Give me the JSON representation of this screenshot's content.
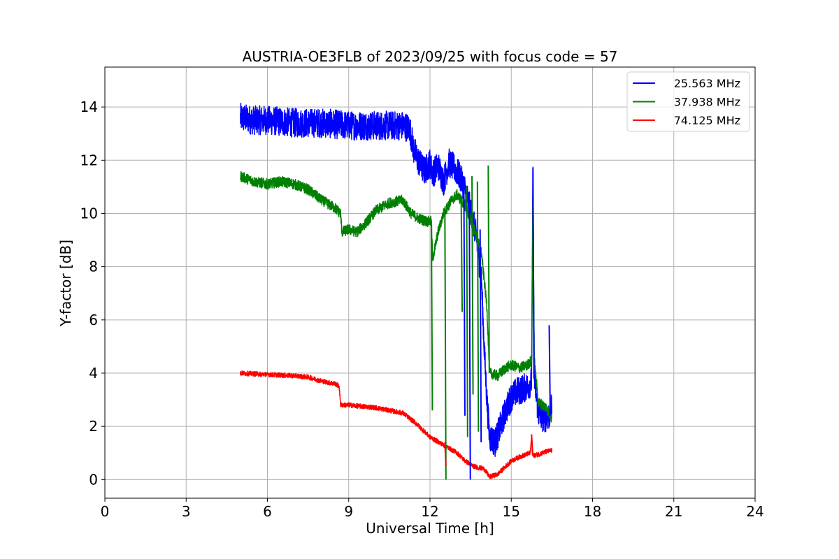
{
  "chart_data": {
    "type": "line",
    "title": "AUSTRIA-OE3FLB of 2023/09/25 with focus code = 57",
    "xlabel": "Universal Time [h]",
    "ylabel": "Y-factor [dB]",
    "xlim": [
      0,
      24
    ],
    "ylim": [
      -0.7,
      15.5
    ],
    "xticks": [
      0,
      3,
      6,
      9,
      12,
      15,
      18,
      21,
      24
    ],
    "xtick_labels": [
      "0",
      "3",
      "6",
      "9",
      "12",
      "15",
      "18",
      "21",
      "24"
    ],
    "yticks": [
      0,
      2,
      4,
      6,
      8,
      10,
      12,
      14
    ],
    "ytick_labels": [
      "0",
      "2",
      "4",
      "6",
      "8",
      "10",
      "12",
      "14"
    ],
    "grid": true,
    "legend_position": "top-right",
    "series": [
      {
        "name": "25.563 MHz",
        "color": "#0000ff",
        "noise": 0.55,
        "x": [
          5.0,
          5.5,
          6.0,
          7.0,
          8.0,
          9.0,
          10.0,
          11.0,
          11.25,
          11.4,
          11.6,
          11.8,
          12.0,
          12.1,
          12.3,
          12.5,
          12.7,
          12.9,
          13.1,
          13.3,
          13.5,
          13.7,
          13.9,
          14.0,
          14.1,
          14.2,
          14.4,
          14.6,
          14.8,
          15.0,
          15.2,
          15.4,
          15.6,
          15.75,
          15.8,
          15.85,
          16.0,
          16.2,
          16.4,
          16.5
        ],
        "y": [
          13.6,
          13.5,
          13.5,
          13.4,
          13.4,
          13.3,
          13.3,
          13.3,
          13.2,
          12.4,
          11.9,
          11.6,
          11.9,
          11.5,
          11.8,
          11.2,
          11.9,
          11.7,
          11.4,
          10.9,
          10.1,
          9.2,
          7.5,
          5.0,
          3.0,
          1.6,
          1.4,
          2.0,
          2.6,
          3.1,
          3.3,
          3.4,
          3.5,
          3.7,
          11.6,
          3.8,
          2.5,
          2.3,
          2.4,
          2.7
        ]
      },
      {
        "name": "37.938 MHz",
        "color": "#008000",
        "noise": 0.2,
        "x": [
          5.0,
          5.5,
          6.0,
          6.5,
          7.0,
          7.5,
          8.0,
          8.5,
          8.7,
          8.75,
          9.0,
          9.3,
          9.6,
          10.0,
          10.5,
          11.0,
          11.3,
          11.6,
          11.9,
          12.05,
          12.1,
          12.3,
          12.5,
          12.8,
          13.0,
          13.3,
          13.6,
          13.9,
          14.1,
          14.2,
          14.5,
          14.8,
          15.0,
          15.3,
          15.6,
          15.75,
          15.8,
          15.85,
          16.0,
          16.3,
          16.5
        ],
        "y": [
          11.4,
          11.2,
          11.1,
          11.2,
          11.1,
          10.9,
          10.5,
          10.2,
          10.0,
          9.3,
          9.4,
          9.3,
          9.6,
          10.1,
          10.4,
          10.5,
          10.0,
          9.8,
          9.7,
          9.7,
          8.3,
          9.3,
          10.0,
          10.5,
          10.7,
          10.3,
          9.5,
          8.5,
          6.5,
          4.0,
          3.9,
          4.2,
          4.3,
          4.2,
          4.3,
          4.5,
          10.7,
          4.5,
          2.9,
          2.7,
          2.3
        ]
      },
      {
        "name": "74.125 MHz",
        "color": "#ff0000",
        "noise": 0.09,
        "x": [
          5.0,
          6.0,
          7.0,
          7.5,
          8.0,
          8.5,
          8.65,
          8.7,
          9.0,
          9.5,
          10.0,
          10.5,
          11.0,
          11.5,
          12.0,
          12.5,
          13.0,
          13.3,
          13.6,
          14.0,
          14.2,
          14.5,
          14.8,
          15.0,
          15.3,
          15.7,
          15.75,
          15.8,
          15.85,
          16.0,
          16.3,
          16.5
        ],
        "y": [
          4.0,
          3.95,
          3.9,
          3.85,
          3.7,
          3.6,
          3.5,
          2.8,
          2.8,
          2.75,
          2.7,
          2.6,
          2.5,
          2.1,
          1.6,
          1.3,
          1.0,
          0.7,
          0.5,
          0.4,
          0.1,
          0.2,
          0.5,
          0.7,
          0.85,
          1.0,
          1.6,
          0.95,
          0.9,
          0.95,
          1.05,
          1.1
        ]
      }
    ],
    "spikes": [
      {
        "series": 1,
        "x": 12.05,
        "top": 9.7,
        "bottom": 2.6
      },
      {
        "series": 1,
        "x": 12.55,
        "top": 10.0,
        "bottom": 0.0
      },
      {
        "series": 1,
        "x": 13.15,
        "top": 10.6,
        "bottom": 6.3
      },
      {
        "series": 1,
        "x": 13.35,
        "top": 11.0,
        "bottom": 1.6
      },
      {
        "series": 1,
        "x": 13.55,
        "top": 11.4,
        "bottom": 3.2
      },
      {
        "series": 1,
        "x": 13.75,
        "top": 11.2,
        "bottom": 1.8
      },
      {
        "series": 1,
        "x": 14.15,
        "top": 11.8,
        "bottom": 4.0
      },
      {
        "series": 1,
        "x": 15.8,
        "top": 10.7,
        "bottom": 4.5
      },
      {
        "series": 0,
        "x": 13.25,
        "top": 11.2,
        "bottom": 2.4
      },
      {
        "series": 0,
        "x": 13.45,
        "top": 10.8,
        "bottom": 0.0
      },
      {
        "series": 0,
        "x": 13.85,
        "top": 9.4,
        "bottom": 1.4
      },
      {
        "series": 0,
        "x": 15.8,
        "top": 11.7,
        "bottom": 3.8
      },
      {
        "series": 0,
        "x": 16.4,
        "top": 5.8,
        "bottom": 2.4
      },
      {
        "series": 2,
        "x": 12.55,
        "top": 1.4,
        "bottom": 0.5
      },
      {
        "series": 2,
        "x": 15.75,
        "top": 1.7,
        "bottom": 0.9
      }
    ]
  }
}
